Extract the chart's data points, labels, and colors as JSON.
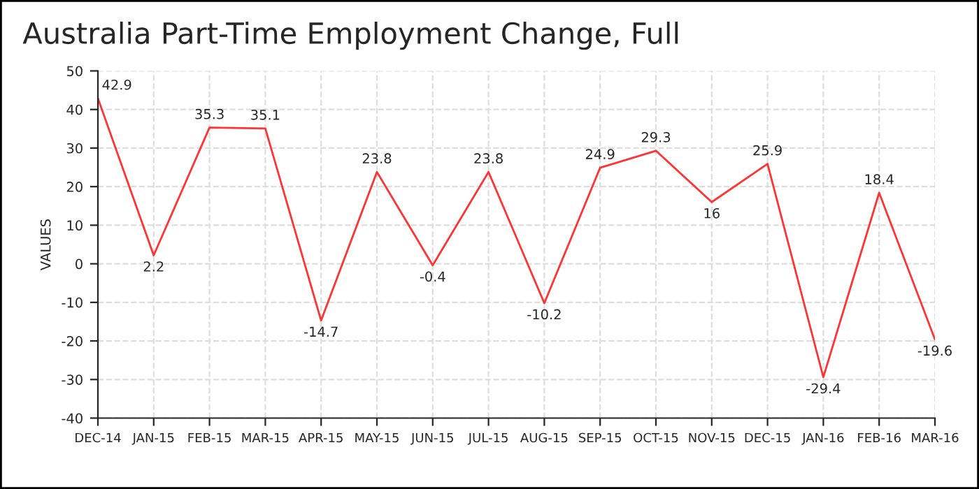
{
  "chart_data": {
    "type": "line",
    "title": "Australia Part-Time Employment Change, Full",
    "ylabel": "VALUES",
    "categories": [
      "DEC-14",
      "JAN-15",
      "FEB-15",
      "MAR-15",
      "APR-15",
      "MAY-15",
      "JUN-15",
      "JUL-15",
      "AUG-15",
      "SEP-15",
      "OCT-15",
      "NOV-15",
      "DEC-15",
      "JAN-16",
      "FEB-16",
      "MAR-16"
    ],
    "series": [
      {
        "color": "#ff3333",
        "values": [
          42.9,
          2.2,
          35.3,
          35.1,
          -14.7,
          23.8,
          -0.4,
          23.8,
          -10.2,
          24.9,
          29.3,
          16,
          25.9,
          -29.4,
          18.4,
          -19.6
        ]
      }
    ],
    "ylim": [
      -40,
      50
    ],
    "yticks": [
      -40,
      -30,
      -20,
      -10,
      0,
      10,
      20,
      30,
      40,
      50
    ],
    "grid": true,
    "data_labels": true,
    "marker": "none",
    "line_style": "solid"
  }
}
